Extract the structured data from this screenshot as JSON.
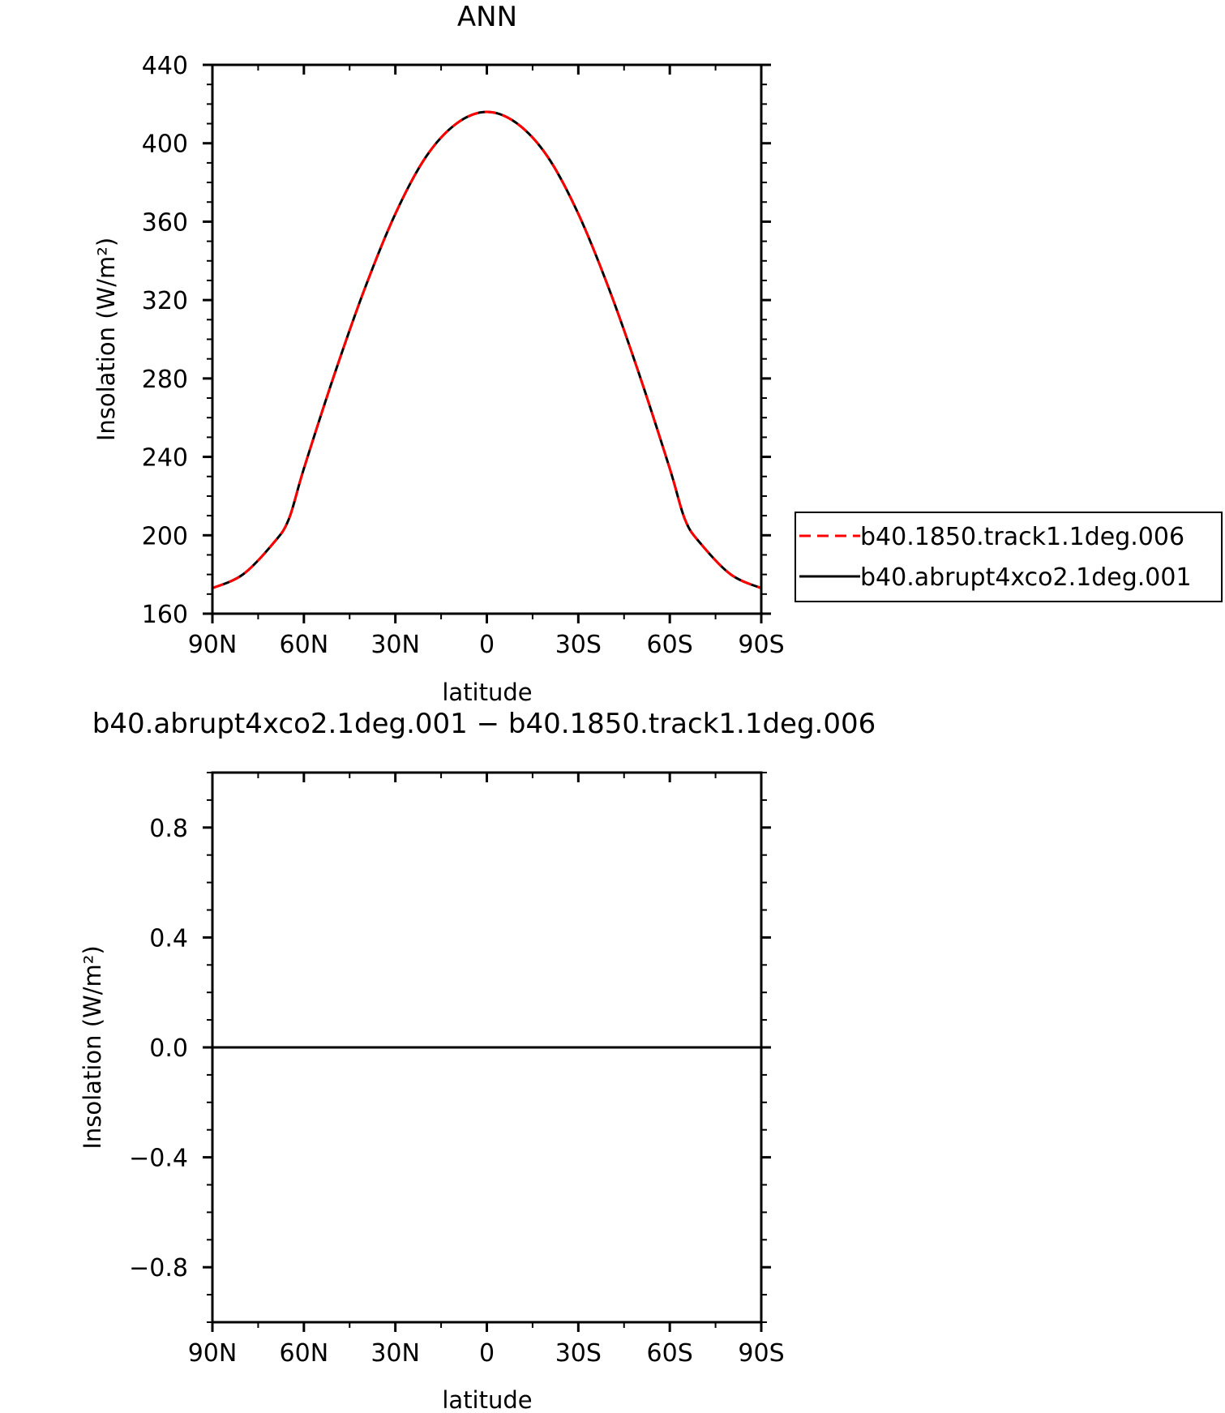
{
  "chart_data": [
    {
      "type": "line",
      "title": "ANN",
      "xlabel": "latitude",
      "ylabel": "Insolation (W/m²)",
      "xlim": [
        -90,
        90
      ],
      "ylim": [
        160,
        440
      ],
      "x_ticks": [
        -90,
        -60,
        -30,
        0,
        30,
        60,
        90
      ],
      "x_tick_labels": [
        "90N",
        "60N",
        "30N",
        "0",
        "30S",
        "60S",
        "90S"
      ],
      "y_ticks": [
        160,
        200,
        240,
        280,
        320,
        360,
        400,
        440
      ],
      "y_tick_labels": [
        "160",
        "200",
        "240",
        "280",
        "320",
        "360",
        "400",
        "440"
      ],
      "x": [
        -90,
        -80,
        -70,
        -65,
        -60,
        -50,
        -40,
        -30,
        -20,
        -10,
        0,
        10,
        20,
        30,
        40,
        50,
        60,
        65,
        70,
        80,
        90
      ],
      "series": [
        {
          "name": "b40.1850.track1.1deg.006",
          "color": "#ff0000",
          "dash": "dashed",
          "values": [
            173,
            180,
            196,
            208,
            234,
            282,
            326,
            364,
            393,
            410,
            416,
            410,
            393,
            364,
            326,
            282,
            234,
            208,
            196,
            180,
            173
          ]
        },
        {
          "name": "b40.abrupt4xco2.1deg.001",
          "color": "#000000",
          "dash": "solid",
          "values": [
            173,
            180,
            196,
            208,
            234,
            282,
            326,
            364,
            393,
            410,
            416,
            410,
            393,
            364,
            326,
            282,
            234,
            208,
            196,
            180,
            173
          ]
        }
      ],
      "legend_position": "right"
    },
    {
      "type": "line",
      "title": "b40.abrupt4xco2.1deg.001 − b40.1850.track1.1deg.006",
      "xlabel": "latitude",
      "ylabel": "Insolation (W/m²)",
      "xlim": [
        -90,
        90
      ],
      "ylim": [
        -1,
        1
      ],
      "x_ticks": [
        -90,
        -60,
        -30,
        0,
        30,
        60,
        90
      ],
      "x_tick_labels": [
        "90N",
        "60N",
        "30N",
        "0",
        "30S",
        "60S",
        "90S"
      ],
      "y_ticks": [
        -0.8,
        -0.4,
        0,
        0.4,
        0.8
      ],
      "y_tick_labels": [
        "−0.8",
        "−0.4",
        "0.0",
        "0.4",
        "0.8"
      ],
      "x": [
        -90,
        -45,
        0,
        45,
        90
      ],
      "series": [
        {
          "color": "#000000",
          "dash": "solid",
          "values": [
            0,
            0,
            0,
            0,
            0
          ]
        }
      ]
    }
  ]
}
